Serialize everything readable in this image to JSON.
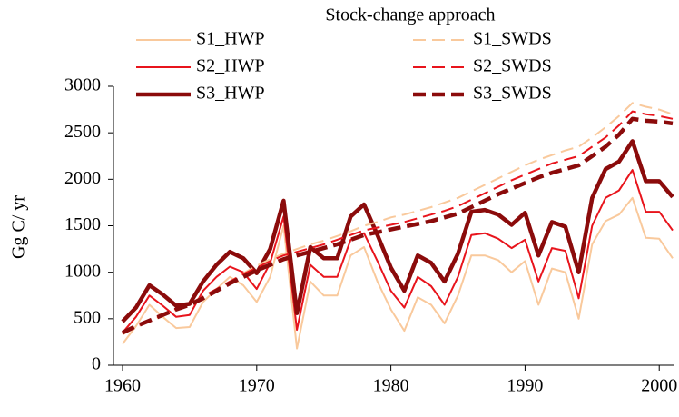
{
  "chart_data": {
    "type": "line",
    "title": "Stock-change approach",
    "y_label": "Gg C/ yr",
    "x": [
      1960,
      1961,
      1962,
      1963,
      1964,
      1965,
      1966,
      1967,
      1968,
      1969,
      1970,
      1971,
      1972,
      1973,
      1974,
      1975,
      1976,
      1977,
      1978,
      1979,
      1980,
      1981,
      1982,
      1983,
      1984,
      1985,
      1986,
      1987,
      1988,
      1989,
      1990,
      1991,
      1992,
      1993,
      1994,
      1995,
      1996,
      1997,
      1998,
      1999,
      2000,
      2001
    ],
    "xlim": [
      1960,
      2001
    ],
    "xticks": [
      1960,
      1970,
      1980,
      1990,
      2000
    ],
    "ylim": [
      0,
      3000
    ],
    "yticks": [
      0,
      500,
      1000,
      1500,
      2000,
      2500,
      3000
    ],
    "grid": false,
    "series": [
      {
        "name": "S1_HWP",
        "color": "#f9c99c",
        "style": "solid",
        "values": [
          230,
          420,
          650,
          520,
          400,
          410,
          680,
          820,
          950,
          860,
          680,
          950,
          1500,
          180,
          900,
          750,
          750,
          1180,
          1270,
          900,
          600,
          370,
          730,
          650,
          450,
          750,
          1180,
          1180,
          1130,
          1000,
          1120,
          650,
          1040,
          1000,
          500,
          1300,
          1550,
          1620,
          1800,
          1370,
          1360,
          1150
        ]
      },
      {
        "name": "S2_HWP",
        "color": "#e8141c",
        "style": "solid",
        "values": [
          350,
          520,
          750,
          640,
          520,
          540,
          800,
          950,
          1060,
          1000,
          820,
          1100,
          1600,
          380,
          1080,
          950,
          950,
          1350,
          1420,
          1120,
          800,
          620,
          950,
          850,
          650,
          950,
          1400,
          1420,
          1360,
          1260,
          1350,
          900,
          1260,
          1230,
          720,
          1500,
          1800,
          1880,
          2100,
          1650,
          1650,
          1450
        ]
      },
      {
        "name": "S3_HWP",
        "color": "#8b0b0b",
        "style": "solid",
        "values": [
          470,
          620,
          860,
          760,
          640,
          660,
          900,
          1080,
          1220,
          1150,
          990,
          1250,
          1770,
          560,
          1270,
          1150,
          1150,
          1600,
          1730,
          1400,
          1050,
          800,
          1180,
          1100,
          900,
          1200,
          1650,
          1670,
          1620,
          1510,
          1640,
          1180,
          1540,
          1490,
          1000,
          1800,
          2110,
          2190,
          2410,
          1980,
          1980,
          1810
        ]
      },
      {
        "name": "S1_SWDS",
        "color": "#f9c99c",
        "style": "dashed",
        "values": [
          330,
          410,
          470,
          530,
          600,
          660,
          740,
          820,
          900,
          990,
          1070,
          1140,
          1200,
          1250,
          1300,
          1340,
          1390,
          1440,
          1500,
          1540,
          1590,
          1620,
          1660,
          1700,
          1750,
          1800,
          1870,
          1940,
          2010,
          2080,
          2150,
          2210,
          2260,
          2310,
          2350,
          2450,
          2560,
          2680,
          2820,
          2780,
          2750,
          2700
        ]
      },
      {
        "name": "S2_SWDS",
        "color": "#e8141c",
        "style": "dashed",
        "values": [
          340,
          420,
          480,
          540,
          610,
          660,
          740,
          820,
          900,
          980,
          1050,
          1120,
          1180,
          1220,
          1260,
          1300,
          1350,
          1400,
          1450,
          1480,
          1510,
          1540,
          1580,
          1620,
          1660,
          1710,
          1780,
          1850,
          1920,
          1990,
          2050,
          2110,
          2170,
          2210,
          2250,
          2350,
          2450,
          2580,
          2730,
          2700,
          2680,
          2650
        ]
      },
      {
        "name": "S3_SWDS",
        "color": "#8b0b0b",
        "style": "dashed",
        "values": [
          350,
          420,
          480,
          540,
          600,
          650,
          720,
          800,
          880,
          950,
          1020,
          1080,
          1140,
          1180,
          1220,
          1260,
          1300,
          1350,
          1400,
          1430,
          1460,
          1490,
          1520,
          1550,
          1590,
          1630,
          1700,
          1770,
          1840,
          1900,
          1960,
          2020,
          2070,
          2110,
          2150,
          2250,
          2350,
          2480,
          2650,
          2630,
          2620,
          2600
        ]
      }
    ]
  }
}
